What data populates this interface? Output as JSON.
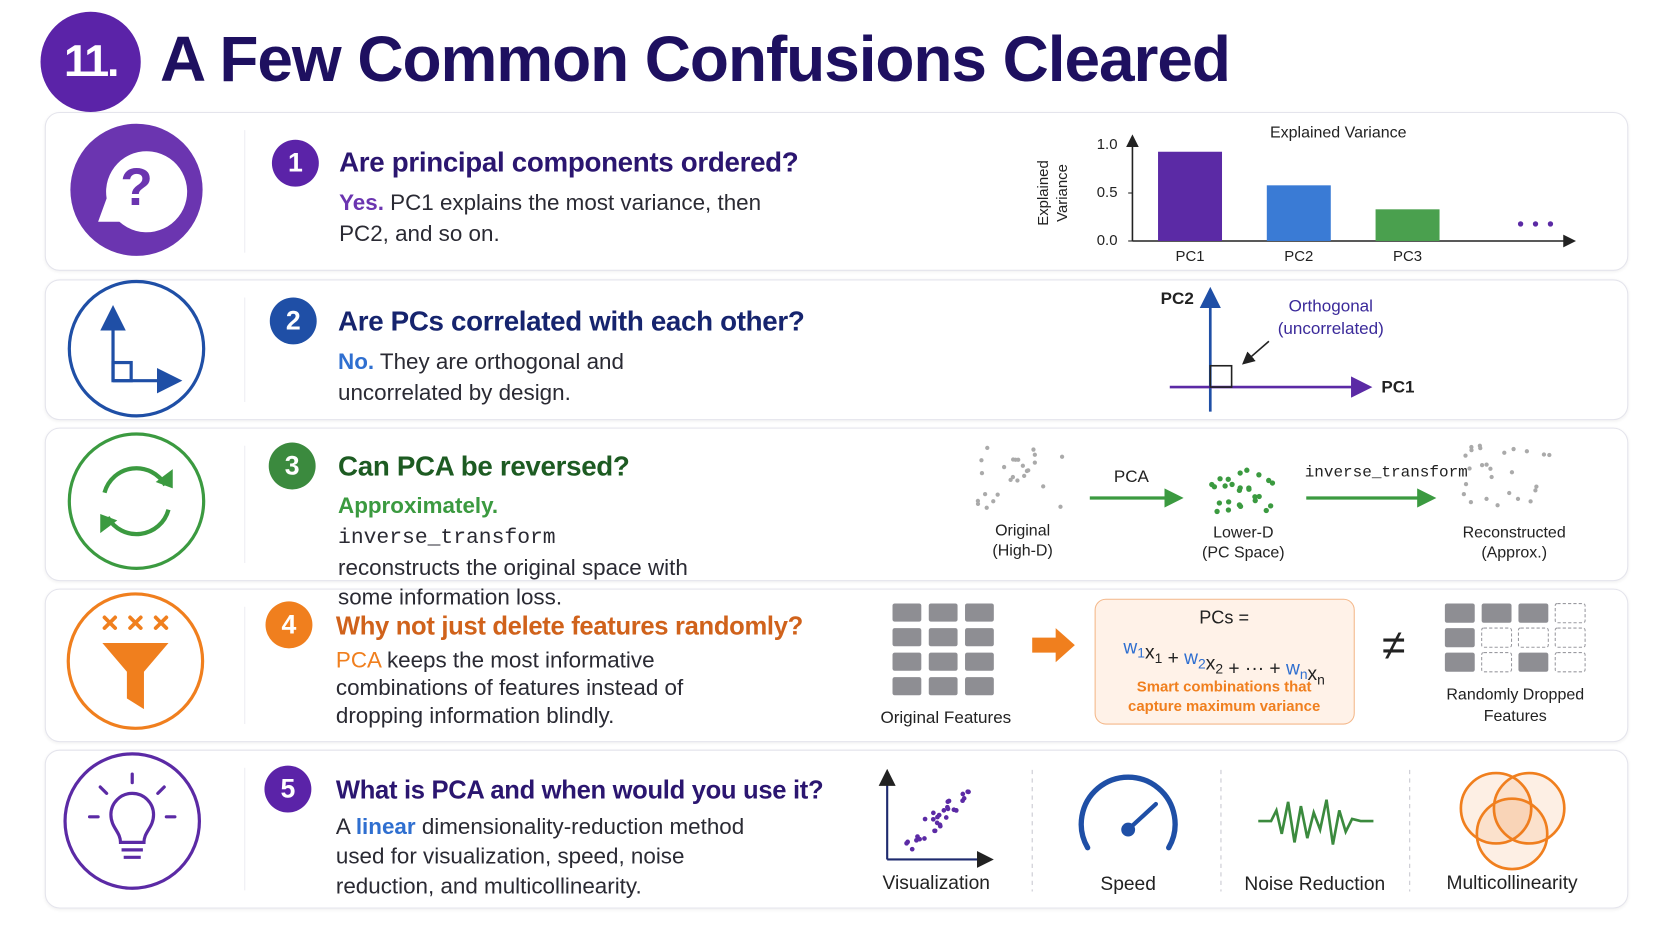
{
  "header": {
    "number": "11.",
    "title": "A Few Common Confusions Cleared"
  },
  "chart_data": {
    "type": "bar",
    "title": "Explained Variance",
    "y_label": [
      "Explained",
      "Variance"
    ],
    "categories": [
      "PC1",
      "PC2",
      "PC3"
    ],
    "values": [
      0.93,
      0.58,
      0.33
    ],
    "colors": [
      "#5b2aa5",
      "#3a7bd5",
      "#4aa04e"
    ],
    "ylim": [
      0,
      1
    ],
    "yticks": [
      {
        "value": 0,
        "label": "0.0"
      },
      0.5,
      {
        "value": 1,
        "label": "1.0"
      }
    ]
  },
  "items": [
    {
      "number": "1",
      "icon_text": "?",
      "question": "Are principal components ordered?",
      "answer_lead": "Yes.",
      "answer_text": "PC1 explains the most variance, then PC2, and so on."
    },
    {
      "number": "2",
      "question": "Are PCs correlated with each other?",
      "answer_lead": "No.",
      "answer_text": "They are orthogonal and uncorrelated by design.",
      "y_axis_label": "PC2",
      "x_axis_label": "PC1",
      "annotation": [
        "Orthogonal",
        "(uncorrelated)"
      ]
    },
    {
      "number": "3",
      "question": "Can PCA be reversed?",
      "answer_lead": "Approximately.",
      "answer_code": "inverse_transform",
      "answer_text": "reconstructs the original space with some information loss.",
      "step1_label": "PCA",
      "step2_label": "inverse_transform",
      "stages": [
        [
          "Original",
          "(High-D)"
        ],
        [
          "Lower-D",
          "(PC Space)"
        ],
        [
          "Reconstructed",
          "(Approx.)"
        ]
      ]
    },
    {
      "number": "4",
      "question": "Why not just delete features randomly?",
      "answer_lead": "PCA",
      "answer_text": "keeps the most informative combinations of features instead of dropping information blindly.",
      "original_label": "Original Features",
      "formula_title": "PCs =",
      "formula": [
        {
          "text": "w",
          "sub": "1"
        },
        {
          "text": "x",
          "sub": "1"
        },
        {
          "text": " + "
        },
        {
          "text": "w",
          "sub": "2"
        },
        {
          "text": "x",
          "sub": "2"
        },
        {
          "text": " + ··· + "
        },
        {
          "text": "w",
          "sub": "n"
        },
        {
          "text": "x",
          "sub": "n"
        }
      ],
      "formula_note": [
        "Smart combinations that",
        "capture maximum variance"
      ],
      "not_equal": "≠",
      "dropped_label": [
        "Randomly Dropped",
        "Features"
      ]
    },
    {
      "number": "5",
      "question": "What is PCA and when would you use it?",
      "answer_pre": "A",
      "answer_lead": "linear",
      "answer_text": "dimensionality-reduction method used for visualization, speed, noise reduction, and multicollinearity.",
      "uses": [
        "Visualization",
        "Speed",
        "Noise Reduction",
        "Multicollinearity"
      ]
    }
  ]
}
